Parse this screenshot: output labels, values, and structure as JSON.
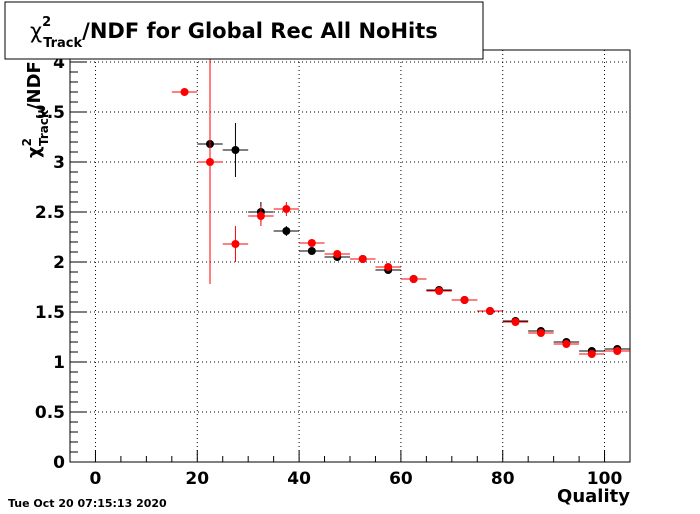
{
  "chart_data": {
    "type": "scatter",
    "title": {
      "symbol": "χ",
      "sup": "2",
      "sub": "Track",
      "text": "/NDF for Global Rec All NoHits"
    },
    "y_label": {
      "symbol": "χ",
      "sup": "2",
      "sub": "Track",
      "text": "/NDF"
    },
    "x_label": "Quality",
    "timestamp": "Tue Oct 20 07:15:13 2020",
    "xlim": [
      -5,
      105
    ],
    "ylim": [
      0,
      4.12
    ],
    "xticks": [
      0,
      20,
      40,
      60,
      80,
      100
    ],
    "yticks": [
      0,
      0.5,
      1,
      1.5,
      2,
      2.5,
      3,
      3.5,
      4
    ],
    "grid": true,
    "x_error": 2.5,
    "series": [
      {
        "color": "#000000",
        "x": [
          22.5,
          27.5,
          32.5,
          37.5,
          42.5,
          47.5,
          52.5,
          57.5,
          62.5,
          67.5,
          72.5,
          77.5,
          82.5,
          87.5,
          92.5,
          97.5,
          102.5
        ],
        "values": [
          3.18,
          3.12,
          2.5,
          2.31,
          2.11,
          2.05,
          2.03,
          1.92,
          1.83,
          1.72,
          1.62,
          1.51,
          1.41,
          1.31,
          1.2,
          1.11,
          1.13
        ],
        "errors": [
          0.05,
          0.27,
          0.1,
          0.05,
          0.03,
          0.03,
          0.02,
          0.02,
          0.02,
          0.02,
          0.02,
          0.02,
          0.02,
          0.02,
          0.02,
          0.02,
          0.02
        ]
      },
      {
        "color": "#ff0000",
        "x": [
          17.5,
          22.5,
          27.5,
          32.5,
          37.5,
          42.5,
          47.5,
          52.5,
          57.5,
          62.5,
          67.5,
          72.5,
          77.5,
          82.5,
          87.5,
          92.5,
          97.5,
          102.5
        ],
        "values": [
          3.7,
          3.0,
          2.18,
          2.46,
          2.53,
          2.19,
          2.08,
          2.03,
          1.95,
          1.83,
          1.71,
          1.62,
          1.51,
          1.4,
          1.29,
          1.18,
          1.08,
          1.11
        ],
        "errors": [
          0.02,
          1.22,
          0.18,
          0.1,
          0.07,
          0.03,
          0.03,
          0.02,
          0.02,
          0.02,
          0.02,
          0.02,
          0.02,
          0.02,
          0.02,
          0.02,
          0.02,
          0.02
        ]
      }
    ]
  }
}
